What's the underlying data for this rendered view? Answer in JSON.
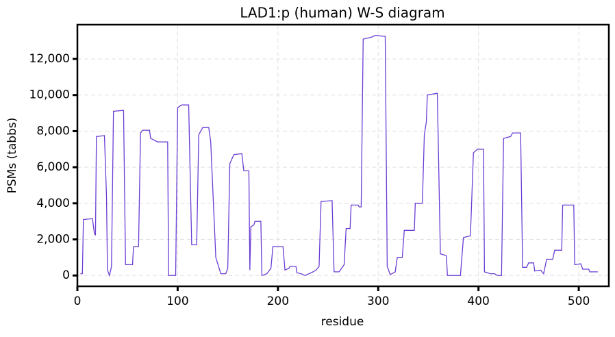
{
  "chart_data": {
    "type": "line",
    "title": "LAD1:p (human) W-S diagram",
    "x_label": "residue",
    "y_label": "PSMs (tabbs)",
    "color": "#6a3dd4",
    "grid": true,
    "x": [
      3,
      5,
      6,
      15,
      17,
      18,
      19,
      27,
      29,
      30,
      32,
      34,
      36,
      46,
      48,
      55,
      56,
      61,
      63,
      65,
      72,
      73,
      80,
      90,
      91,
      98,
      100,
      104,
      111,
      114,
      119,
      121,
      125,
      131,
      133,
      138,
      143,
      148,
      150,
      152,
      156,
      164,
      166,
      171,
      172,
      173,
      176,
      177,
      183,
      184,
      189,
      193,
      195,
      205,
      207,
      211,
      212,
      218,
      219,
      223,
      227,
      231,
      235,
      238,
      241,
      243,
      254,
      256,
      261,
      266,
      268,
      272,
      273,
      280,
      281,
      283,
      285,
      293,
      297,
      307,
      309,
      312,
      317,
      319,
      324,
      326,
      336,
      337,
      344,
      346,
      348,
      349,
      359,
      362,
      368,
      369,
      382,
      385,
      392,
      395,
      399,
      405,
      406,
      412,
      416,
      419,
      423,
      425,
      432,
      434,
      442,
      444,
      448,
      450,
      455,
      456,
      462,
      465,
      468,
      474,
      476,
      483,
      484,
      495,
      496,
      502,
      504,
      510,
      511,
      519
    ],
    "values": [
      100,
      100,
      3100,
      3150,
      2300,
      2250,
      7700,
      7750,
      4400,
      300,
      0,
      500,
      9100,
      9150,
      600,
      600,
      1600,
      1600,
      7900,
      8050,
      8050,
      7600,
      7400,
      7400,
      0,
      0,
      9300,
      9450,
      9450,
      1700,
      1700,
      7800,
      8200,
      8200,
      7400,
      1000,
      100,
      100,
      400,
      6200,
      6700,
      6750,
      5800,
      5800,
      300,
      2700,
      2800,
      3000,
      3000,
      0,
      100,
      400,
      1600,
      1600,
      300,
      400,
      500,
      500,
      150,
      100,
      0,
      100,
      200,
      300,
      500,
      4100,
      4150,
      200,
      200,
      600,
      2600,
      2600,
      3900,
      3900,
      3800,
      3800,
      13100,
      13200,
      13300,
      13250,
      500,
      50,
      200,
      1000,
      1000,
      2500,
      2500,
      4000,
      4000,
      7800,
      8500,
      10000,
      10100,
      1200,
      1100,
      0,
      0,
      2100,
      2200,
      6800,
      7000,
      7000,
      200,
      100,
      100,
      0,
      0,
      7600,
      7700,
      7900,
      7900,
      450,
      450,
      700,
      700,
      250,
      300,
      100,
      900,
      900,
      1400,
      1400,
      3900,
      3900,
      600,
      650,
      350,
      350,
      200,
      200
    ],
    "xlim": [
      0,
      530
    ],
    "ylim": [
      -600,
      13900
    ],
    "xticks": [
      0,
      100,
      200,
      300,
      400,
      500
    ],
    "yticks": [
      0,
      {
        "value": 2000,
        "label": "2,000"
      },
      {
        "value": 4000,
        "label": "4,000"
      },
      {
        "value": 6000,
        "label": "6,000"
      },
      {
        "value": 8000,
        "label": "8,000"
      },
      {
        "value": 10000,
        "label": "10,000"
      },
      {
        "value": 12000,
        "label": "12,000"
      }
    ]
  }
}
